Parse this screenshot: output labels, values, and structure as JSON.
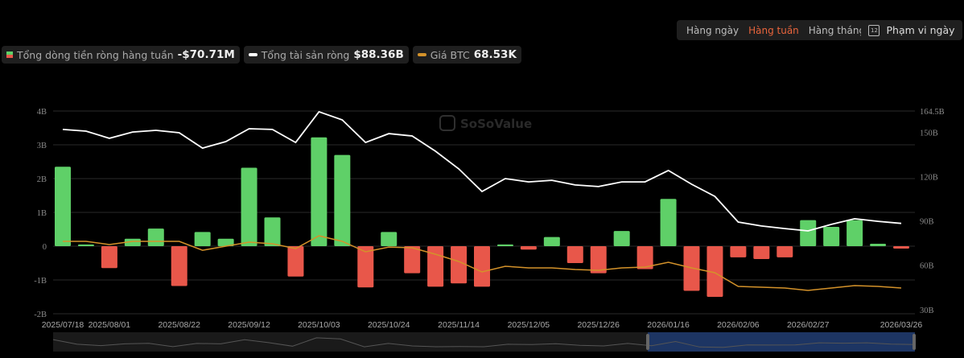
{
  "controls": {
    "periods": [
      {
        "label": "Hàng ngày",
        "active": false
      },
      {
        "label": "Hàng tuần",
        "active": true
      },
      {
        "label": "Hàng tháng",
        "active": false
      }
    ],
    "range_button": {
      "label": "Phạm vi ngày",
      "icon": "calendar-icon",
      "icon_text": "12"
    }
  },
  "legend": [
    {
      "label": "Tổng dòng tiền ròng hàng tuần",
      "value": "-$70.71M",
      "swatch": "bar"
    },
    {
      "label": "Tổng tài sản ròng",
      "value": "$88.36B",
      "swatch": "#ffffff"
    },
    {
      "label": "Giá BTC",
      "value": "68.53K",
      "swatch": "#d4922a"
    }
  ],
  "watermark": "SoSoValue",
  "colors": {
    "positive": "#5fd068",
    "negative": "#e8574a",
    "total_assets": "#ffffff",
    "btc": "#d4922a",
    "navigator_selection": "#1d3563"
  },
  "chart_data": {
    "type": "bar+line",
    "x": [
      "2025/07/18",
      "2025/07/25",
      "2025/08/01",
      "2025/08/08",
      "2025/08/15",
      "2025/08/22",
      "2025/08/29",
      "2025/09/05",
      "2025/09/12",
      "2025/09/19",
      "2025/09/26",
      "2025/10/03",
      "2025/10/10",
      "2025/10/17",
      "2025/10/24",
      "2025/10/31",
      "2025/11/07",
      "2025/11/14",
      "2025/11/21",
      "2025/11/28",
      "2025/12/05",
      "2025/12/12",
      "2025/12/19",
      "2025/12/26",
      "2026/01/02",
      "2026/01/09",
      "2026/01/16",
      "2026/01/23",
      "2026/01/30",
      "2026/02/06",
      "2026/02/13",
      "2026/02/20",
      "2026/02/27",
      "2026/03/06",
      "2026/03/13",
      "2026/03/20",
      "2026/03/26"
    ],
    "x_tick_labels": [
      "2025/07/18",
      "2025/08/01",
      "2025/08/22",
      "2025/09/12",
      "2025/10/03",
      "2025/10/24",
      "2025/11/14",
      "2025/12/05",
      "2025/12/26",
      "2026/01/16",
      "2026/02/06",
      "2026/02/27",
      "2026/03/26"
    ],
    "left_axis": {
      "ticks": [
        "4B",
        "3B",
        "2B",
        "1B",
        "0",
        "-1B",
        "-2B"
      ],
      "range": [
        -2,
        4
      ],
      "unit": "B"
    },
    "right_axis": {
      "ticks": [
        "164.5B",
        "150B",
        "120B",
        "90B",
        "60B",
        "30B"
      ],
      "range": [
        30,
        164.5
      ],
      "unit": "B"
    },
    "grid": true,
    "series": [
      {
        "name": "Tổng dòng tiền ròng hàng tuần",
        "type": "bar",
        "axis": "left",
        "unit": "B USD",
        "values": [
          2.35,
          0.05,
          -0.65,
          0.22,
          0.52,
          -1.18,
          0.42,
          0.22,
          2.32,
          0.85,
          -0.9,
          3.22,
          2.7,
          -1.22,
          0.42,
          -0.8,
          -1.2,
          -1.1,
          -1.2,
          0.05,
          -0.1,
          0.27,
          -0.5,
          -0.8,
          0.45,
          -0.68,
          1.4,
          -1.32,
          -1.5,
          -0.33,
          -0.38,
          -0.33,
          0.77,
          0.57,
          0.77,
          0.07,
          -0.07071
        ]
      },
      {
        "name": "Tổng tài sản ròng",
        "type": "line",
        "axis": "right",
        "unit": "B USD",
        "values": [
          152.0,
          150.9,
          146.0,
          150.3,
          151.4,
          149.8,
          139.4,
          143.8,
          152.5,
          152.0,
          143.2,
          164.0,
          158.5,
          143.2,
          149.2,
          147.6,
          137.3,
          125.3,
          110.0,
          118.7,
          116.5,
          117.6,
          114.4,
          113.3,
          116.5,
          116.5,
          124.2,
          114.9,
          106.7,
          89.3,
          86.6,
          84.9,
          83.3,
          87.7,
          91.5,
          89.8,
          88.36
        ]
      },
      {
        "name": "Giá BTC",
        "type": "line",
        "axis": "hidden",
        "unit": "K USD",
        "values": [
          117.8,
          117.8,
          114.4,
          117.8,
          117.8,
          117.8,
          108.4,
          112.7,
          117.0,
          115.3,
          110.2,
          123.7,
          117.8,
          106.8,
          111.8,
          111.0,
          104.2,
          96.6,
          85.5,
          91.5,
          89.8,
          89.8,
          88.1,
          87.2,
          89.8,
          90.6,
          95.7,
          89.8,
          84.7,
          70.2,
          69.4,
          68.5,
          66.0,
          68.5,
          71.1,
          70.2,
          68.53
        ]
      }
    ]
  }
}
